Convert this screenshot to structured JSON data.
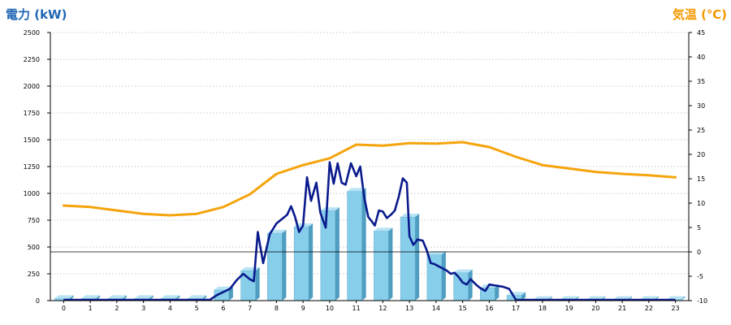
{
  "chart_data": {
    "type": "bar+line",
    "left_axis": {
      "label": "電力 (kW)",
      "color": "#1f66b4",
      "range": [
        0,
        2500
      ],
      "ticks": [
        "0",
        "250",
        "500",
        "750",
        "1000",
        "1250",
        "1500",
        "1750",
        "2000",
        "2250",
        "2500"
      ]
    },
    "right_axis": {
      "label": "気温 (℃)",
      "color": "#f39800",
      "range": [
        -10,
        45
      ],
      "ticks": [
        "-10",
        "-5",
        "0",
        "5",
        "10",
        "15",
        "20",
        "25",
        "30",
        "35",
        "40",
        "45"
      ]
    },
    "grid": true,
    "categories": [
      "0",
      "1",
      "2",
      "3",
      "4",
      "5",
      "6",
      "7",
      "8",
      "9",
      "10",
      "11",
      "12",
      "13",
      "14",
      "15",
      "16",
      "17",
      "18",
      "19",
      "20",
      "21",
      "22",
      "23"
    ],
    "bars": {
      "color": "#87ceeb",
      "values": [
        20,
        20,
        20,
        20,
        20,
        20,
        100,
        280,
        630,
        690,
        840,
        1020,
        650,
        780,
        430,
        260,
        120,
        50,
        10,
        10,
        10,
        10,
        10,
        10
      ]
    },
    "power_line": {
      "color": "#0a1a8c",
      "x": [
        0,
        1,
        2,
        3,
        4,
        5,
        5.5,
        5.75,
        6.0,
        6.25,
        6.5,
        6.75,
        7.0,
        7.15,
        7.3,
        7.5,
        7.75,
        8.0,
        8.25,
        8.4,
        8.55,
        8.7,
        8.85,
        9.0,
        9.15,
        9.3,
        9.5,
        9.65,
        9.85,
        10.0,
        10.15,
        10.3,
        10.45,
        10.6,
        10.8,
        11.0,
        11.15,
        11.3,
        11.45,
        11.55,
        11.7,
        11.85,
        12.0,
        12.15,
        12.3,
        12.45,
        12.6,
        12.75,
        12.9,
        13.0,
        13.15,
        13.3,
        13.5,
        13.65,
        13.8,
        13.95,
        14.1,
        14.25,
        14.4,
        14.55,
        14.7,
        14.85,
        15.0,
        15.15,
        15.3,
        15.5,
        15.65,
        15.85,
        16.0,
        16.25,
        16.5,
        16.75,
        17.0,
        17.5,
        18,
        19,
        20,
        21,
        22,
        23
      ],
      "values": [
        0,
        0,
        0,
        0,
        0,
        0,
        0,
        50,
        80,
        110,
        190,
        250,
        200,
        180,
        640,
        350,
        620,
        720,
        770,
        800,
        880,
        780,
        640,
        700,
        1150,
        930,
        1100,
        820,
        680,
        1290,
        1090,
        1280,
        1100,
        1080,
        1280,
        1160,
        1250,
        960,
        780,
        750,
        700,
        840,
        830,
        770,
        800,
        840,
        970,
        1140,
        1100,
        600,
        520,
        570,
        560,
        470,
        350,
        340,
        320,
        300,
        280,
        250,
        260,
        220,
        170,
        150,
        200,
        150,
        120,
        90,
        150,
        140,
        130,
        110,
        0,
        0,
        0,
        0,
        0,
        0,
        0,
        0
      ]
    },
    "temperature_line": {
      "color": "#f5a40c",
      "x": [
        0,
        1,
        2,
        3,
        4,
        5,
        6,
        7,
        8,
        9,
        10,
        11,
        12,
        13,
        14,
        15,
        16,
        17,
        18,
        19,
        20,
        21,
        22,
        23
      ],
      "values": [
        9.5,
        9.2,
        8.5,
        7.8,
        7.5,
        7.8,
        9.2,
        11.8,
        16,
        17.8,
        19.2,
        22,
        21.8,
        22.3,
        22.2,
        22.5,
        21.5,
        19.5,
        17.8,
        17.1,
        16.4,
        16,
        15.7,
        15.3
      ]
    }
  }
}
